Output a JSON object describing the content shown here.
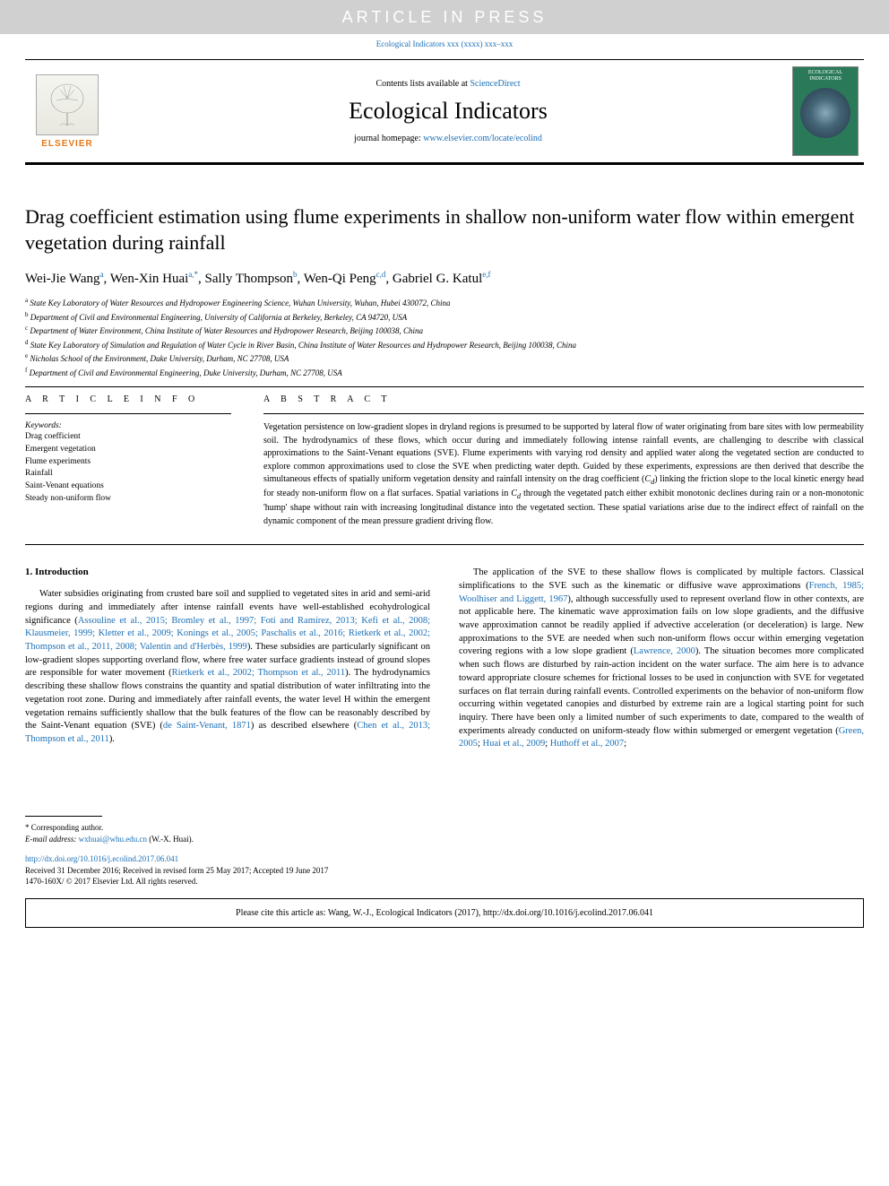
{
  "banner": "ARTICLE IN PRESS",
  "journal_ref": "Ecological Indicators xxx (xxxx) xxx–xxx",
  "header": {
    "contents_prefix": "Contents lists available at ",
    "contents_link": "ScienceDirect",
    "journal_name": "Ecological Indicators",
    "homepage_prefix": "journal homepage: ",
    "homepage_link": "www.elsevier.com/locate/ecolind",
    "elsevier": "ELSEVIER",
    "cover_label": "ECOLOGICAL INDICATORS"
  },
  "title": "Drag coefficient estimation using flume experiments in shallow non-uniform water flow within emergent vegetation during rainfall",
  "authors_html": "Wei-Jie Wang<sup>a</sup>, Wen-Xin Huai<sup>a,*</sup>, Sally Thompson<sup>b</sup>, Wen-Qi Peng<sup>c,d</sup>, Gabriel G. Katul<sup>e,f</sup>",
  "affiliations": [
    "a State Key Laboratory of Water Resources and Hydropower Engineering Science, Wuhan University, Wuhan, Hubei 430072, China",
    "b Department of Civil and Environmental Engineering, University of California at Berkeley, Berkeley, CA 94720, USA",
    "c Department of Water Environment, China Institute of Water Resources and Hydropower Research, Beijing 100038, China",
    "d State Key Laboratory of Simulation and Regulation of Water Cycle in River Basin, China Institute of Water Resources and Hydropower Research, Beijing 100038, China",
    "e Nicholas School of the Environment, Duke University, Durham, NC 27708, USA",
    "f Department of Civil and Environmental Engineering, Duke University, Durham, NC 27708, USA"
  ],
  "article_info_head": "A R T I C L E  I N F O",
  "abstract_head": "A B S T R A C T",
  "keywords_label": "Keywords:",
  "keywords": [
    "Drag coefficient",
    "Emergent vegetation",
    "Flume experiments",
    "Rainfall",
    "Saint-Venant equations",
    "Steady non-uniform flow"
  ],
  "abstract": "Vegetation persistence on low-gradient slopes in dryland regions is presumed to be supported by lateral flow of water originating from bare sites with low permeability soil. The hydrodynamics of these flows, which occur during and immediately following intense rainfall events, are challenging to describe with classical approximations to the Saint-Venant equations (SVE). Flume experiments with varying rod density and applied water along the vegetated section are conducted to explore common approximations used to close the SVE when predicting water depth. Guided by these experiments, expressions are then derived that describe the simultaneous effects of spatially uniform vegetation density and rainfall intensity on the drag coefficient (Cd) linking the friction slope to the local kinetic energy head for steady non-uniform flow on a flat surfaces. Spatial variations in Cd through the vegetated patch either exhibit monotonic declines during rain or a non-monotonic 'hump' shape without rain with increasing longitudinal distance into the vegetated section. These spatial variations arise due to the indirect effect of rainfall on the dynamic component of the mean pressure gradient driving flow.",
  "section1_head": "1. Introduction",
  "col1_p1_a": "Water subsidies originating from crusted bare soil and supplied to vegetated sites in arid and semi-arid regions during and immediately after intense rainfall events have well-established ecohydrological significance (",
  "col1_p1_link1": "Assouline et al., 2015; Bromley et al., 1997; Foti and Ramírez, 2013; Kefi et al., 2008; Klausmeier, 1999; Kletter et al., 2009; Konings et al., 2005; Paschalis et al., 2016; Rietkerk et al., 2002; Thompson et al., 2011, 2008; Valentin and d'Herbès, 1999",
  "col1_p1_b": "). These subsidies are particularly significant on low-gradient slopes supporting overland flow, where free water surface gradients instead of ground slopes are responsible for water movement (",
  "col1_p1_link2": "Rietkerk et al., 2002; Thompson et al., 2011",
  "col1_p1_c": "). The hydrodynamics describing these shallow flows constrains the quantity and spatial distribution of water infiltrating into the vegetation root zone. During and immediately after rainfall events, the water level H within the emergent vegetation remains sufficiently shallow that the bulk features of the flow can be reasonably described by the Saint-Venant equation (SVE) (",
  "col1_p1_link3": "de Saint-Venant, 1871",
  "col1_p1_d": ") as described elsewhere (",
  "col1_p1_link4": "Chen et al., 2013; Thompson et al., 2011",
  "col1_p1_e": ").",
  "col2_p1_a": "The application of the SVE to these shallow flows is complicated by multiple factors. Classical simplifications to the SVE such as the kinematic or diffusive wave approximations (",
  "col2_p1_link1": "French, 1985; Woolhiser and Liggett, 1967",
  "col2_p1_b": "), although successfully used to represent overland flow in other contexts, are not applicable here. The kinematic wave approximation fails on low slope gradients, and the diffusive wave approximation cannot be readily applied if advective acceleration (or deceleration) is large. New approximations to the SVE are needed when such non-uniform flows occur within emerging vegetation covering regions with a low slope gradient (",
  "col2_p1_link2": "Lawrence, 2000",
  "col2_p1_c": "). The situation becomes more complicated when such flows are disturbed by rain-action incident on the water surface. The aim here is to advance toward appropriate closure schemes for frictional losses to be used in conjunction with SVE for vegetated surfaces on flat terrain during rainfall events. Controlled experiments on the behavior of non-uniform flow occurring within vegetated canopies and disturbed by extreme rain are a logical starting point for such inquiry. There have been only a limited number of such experiments to date, compared to the wealth of experiments already conducted on uniform-steady flow within submerged or emergent vegetation (",
  "col2_p1_link3": "Green, 2005",
  "col2_p1_s1": "; ",
  "col2_p1_link4": "Huai et al., 2009",
  "col2_p1_s2": "; ",
  "col2_p1_link5": "Huthoff et al., 2007",
  "col2_p1_d": ";",
  "footer": {
    "corr": "* Corresponding author.",
    "email_label": "E-mail address: ",
    "email": "wxhuai@whu.edu.cn",
    "email_suffix": " (W.-X. Huai).",
    "doi": "http://dx.doi.org/10.1016/j.ecolind.2017.06.041",
    "received": "Received 31 December 2016; Received in revised form 25 May 2017; Accepted 19 June 2017",
    "copyright": "1470-160X/ © 2017 Elsevier Ltd. All rights reserved."
  },
  "cite": "Please cite this article as: Wang, W.-J., Ecological Indicators (2017), http://dx.doi.org/10.1016/j.ecolind.2017.06.041"
}
